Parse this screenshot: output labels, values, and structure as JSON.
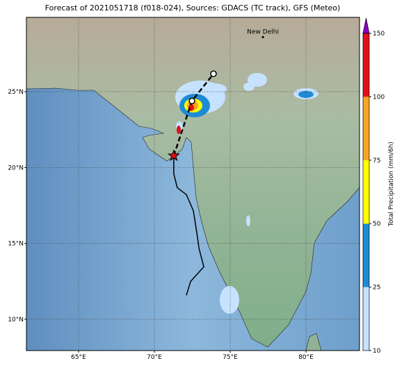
{
  "title": "Forecast of 2021051718 (f018-024), Sources: GDACS (TC track), GFS (Meteo)",
  "map": {
    "lonlim": [
      61.56,
      83.53
    ],
    "latlim": [
      7.94,
      29.9
    ],
    "lon_ticks": [
      {
        "value": 65,
        "label": "65°E"
      },
      {
        "value": 70,
        "label": "70°E"
      },
      {
        "value": 75,
        "label": "75°E"
      },
      {
        "value": 80,
        "label": "80°E"
      }
    ],
    "lat_ticks": [
      {
        "value": 10,
        "label": "10°N"
      },
      {
        "value": 15,
        "label": "15°N"
      },
      {
        "value": 20,
        "label": "20°N"
      },
      {
        "value": 25,
        "label": "25°N"
      }
    ],
    "grid": true
  },
  "places": [
    {
      "name": "New Delhi",
      "lon": 77.16,
      "lat": 28.6
    }
  ],
  "track": {
    "observed": {
      "lon": [
        72.11,
        72.39,
        73.26,
        72.94,
        72.8,
        72.57,
        72.11,
        71.51,
        71.28,
        71.28
      ],
      "lat": [
        11.58,
        12.5,
        13.46,
        14.69,
        15.7,
        17.16,
        18.22,
        18.67,
        19.59,
        20.78
      ]
    },
    "forecast": {
      "lon": [
        71.28,
        72.48,
        73.9
      ],
      "lat": [
        20.78,
        24.39,
        26.18
      ]
    }
  },
  "colorbar": {
    "label": "Total Precipitation (mm/6h)",
    "ticks": [
      10,
      25,
      50,
      75,
      100,
      150
    ],
    "colors": [
      "#c6e2ff",
      "#1e8bd6",
      "#ffff00",
      "#f5a623",
      "#e0101a"
    ],
    "over_color": "#8a00c8"
  }
}
